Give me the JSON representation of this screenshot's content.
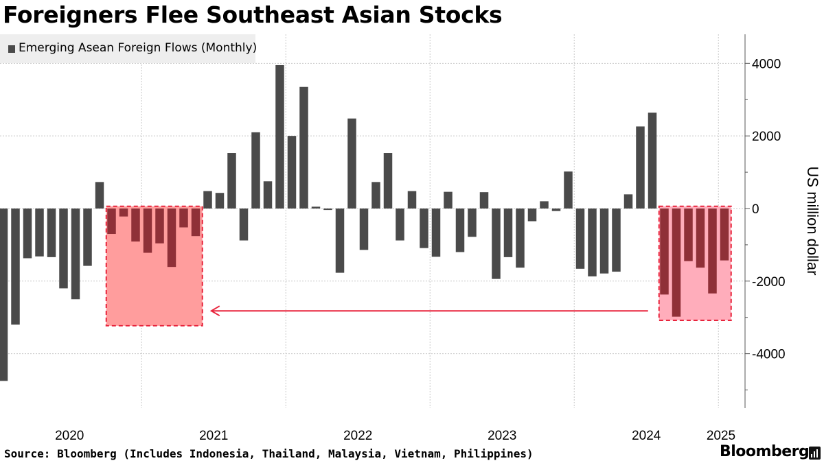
{
  "title": "Foreigners Flee Southeast Asian Stocks",
  "legend": {
    "label": "Emerging Asean Foreign Flows (Monthly)"
  },
  "source": "Source: Bloomberg (Includes Indonesia, Thailand, Malaysia, Vietnam, Philippines)",
  "brand": "Bloomberg",
  "colors": {
    "bar": "#4a4a4a",
    "bar_highlight": "#8f3038",
    "box_left_fill": "#ff9d9d",
    "box_right_fill": "#ffadbb",
    "box_stroke": "#e8243c",
    "arrow": "#e8243c",
    "grid": "#c8c8c8"
  },
  "chart_data": {
    "type": "bar",
    "title": "Foreigners Flee Southeast Asian Stocks",
    "ylabel": "US million dollar",
    "ylim": [
      -5500,
      4800
    ],
    "yticks": [
      4000,
      2000,
      0,
      -2000,
      -4000
    ],
    "ytick_labels": [
      "4000",
      "2000",
      "0",
      "-2000",
      "-4000"
    ],
    "year_labels": [
      "2020",
      "2021",
      "2022",
      "2023",
      "2024",
      "2025"
    ],
    "start": "2020-01",
    "series": [
      {
        "name": "Emerging Asean Foreign Flows (Monthly)",
        "values": [
          -4750,
          -3200,
          -1370,
          -1320,
          -1340,
          -2200,
          -2500,
          -1580,
          730,
          -700,
          -220,
          -910,
          -1220,
          -960,
          -1610,
          -520,
          -760,
          480,
          430,
          1530,
          -880,
          2100,
          750,
          3950,
          2000,
          3350,
          50,
          -40,
          -1770,
          2480,
          -1140,
          730,
          1530,
          -880,
          480,
          -1090,
          -1330,
          460,
          -1200,
          -780,
          450,
          -1940,
          -1340,
          -1630,
          -350,
          200,
          -70,
          1020,
          -1660,
          -1870,
          -1790,
          -1740,
          390,
          2260,
          2640,
          -2370,
          -2980,
          -1450,
          -1630,
          -2340,
          -1430
        ]
      }
    ],
    "highlight_ranges": [
      [
        9,
        16
      ],
      [
        55,
        60
      ]
    ],
    "annotations": [
      {
        "type": "box",
        "from_index": 9,
        "to_index": 17,
        "ymin": -3230,
        "ymax": 60
      },
      {
        "type": "box",
        "from_index": 55,
        "to_index": 61,
        "ymin": -3080,
        "ymax": 60
      },
      {
        "type": "arrow",
        "from": "right-box",
        "to": "left-box",
        "y": -2820
      }
    ]
  }
}
